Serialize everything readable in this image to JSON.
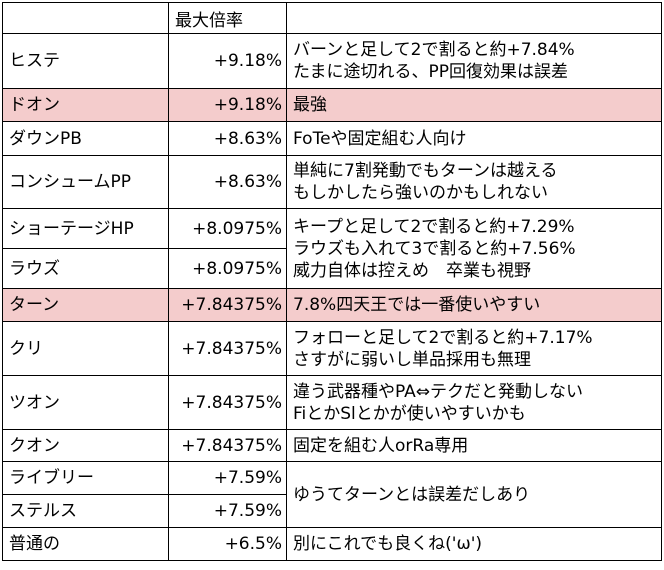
{
  "header": {
    "name": "",
    "value": "最大倍率",
    "note": ""
  },
  "rows": [
    {
      "name": "ヒステ",
      "value": "+9.18%",
      "note": [
        "バーンと足して2で割ると約+7.84%",
        "たまに途切れる、PP回復効果は誤差"
      ]
    },
    {
      "name": "ドオン",
      "value": "+9.18%",
      "note": [
        "最強"
      ]
    },
    {
      "name": "ダウンPB",
      "value": "+8.63%",
      "note": [
        "FoTeや固定組む人向け"
      ]
    },
    {
      "name": "コンシュームPP",
      "value": "+8.63%",
      "note": [
        "単純に7割発動でもターンは越える",
        "もしかしたら強いのかもしれない"
      ]
    },
    {
      "name": "ショーテージHP",
      "value": "+8.0975%"
    },
    {
      "name": "ラウズ",
      "value": "+8.0975%"
    },
    {
      "name": "ターン",
      "value": "+7.84375%",
      "note": [
        "7.8%四天王では一番使いやすい"
      ]
    },
    {
      "name": "クリ",
      "value": "+7.84375%",
      "note": [
        "フォローと足して2で割ると約+7.17%",
        "さすがに弱いし単品採用も無理"
      ]
    },
    {
      "name": "ツオン",
      "value": "+7.84375%",
      "note": [
        "違う武器種やPA⇔テクだと発動しない",
        "FiとかSlとかが使いやすいかも"
      ]
    },
    {
      "name": "クオン",
      "value": "+7.84375%",
      "note": [
        "固定を組む人orRa専用"
      ]
    },
    {
      "name": "ライブリー",
      "value": "+7.59%"
    },
    {
      "name": "ステルス",
      "value": "+7.59%"
    },
    {
      "name": "普通の",
      "value": "+6.5%",
      "note": [
        "別にこれでも良くね('ω')"
      ]
    }
  ],
  "merged_notes": {
    "hp_rouse": [
      "キープと足して2で割ると約+7.29%",
      "ラウズも入れて3で割ると約+7.56%",
      "威力自体は控えめ　卒業も視野"
    ],
    "lively_stealth": [
      "ゆうてターンとは誤差だしあり"
    ]
  },
  "colors": {
    "highlight": "#f4cccc",
    "border": "#000000"
  }
}
